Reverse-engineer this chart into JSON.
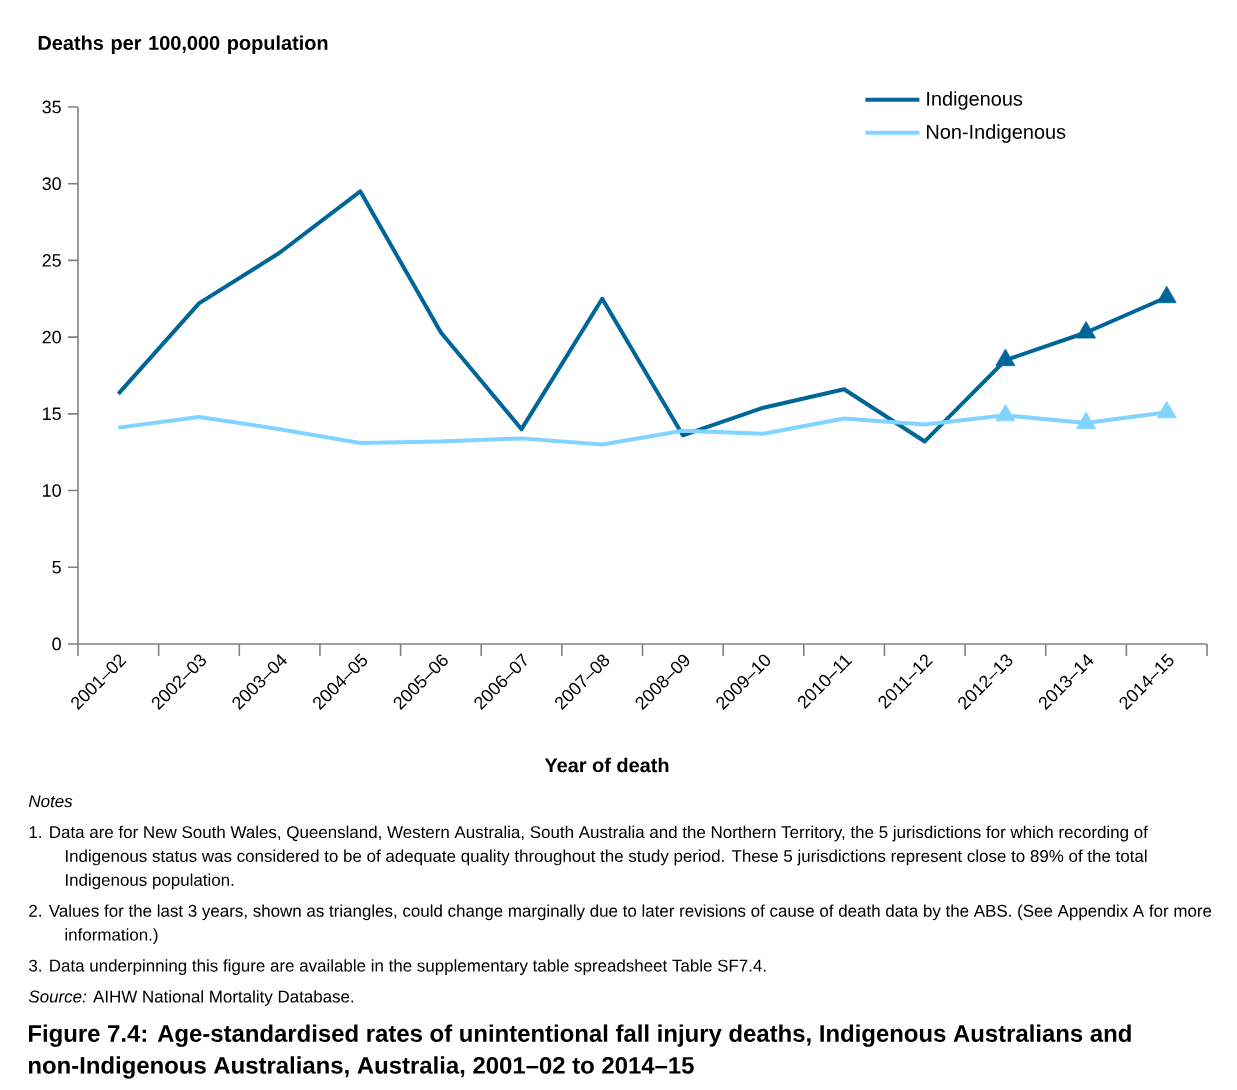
{
  "chart_data": {
    "type": "line",
    "xlabel": "Year of death",
    "ylabel": "Deaths per 100,000 population",
    "categories": [
      "2001–02",
      "2002–03",
      "2003–04",
      "2004–05",
      "2005–06",
      "2006–07",
      "2007–08",
      "2008–09",
      "2009–10",
      "2010–11",
      "2011–12",
      "2012–13",
      "2013–14",
      "2014–15"
    ],
    "series": [
      {
        "name": "Indigenous",
        "color": "#006699",
        "values": [
          16.3,
          22.2,
          25.5,
          29.5,
          20.3,
          14.0,
          22.5,
          13.6,
          15.4,
          16.6,
          13.2,
          18.5,
          20.3,
          22.6
        ]
      },
      {
        "name": "Non-Indigenous",
        "color": "#80d4ff",
        "values": [
          14.1,
          14.8,
          14.0,
          13.1,
          13.2,
          13.4,
          13.0,
          13.9,
          13.7,
          14.7,
          14.3,
          14.9,
          14.4,
          15.1
        ]
      },
      {
        "type": "scatter",
        "marker": "triangle",
        "color": "#006699",
        "values": [
          null,
          null,
          null,
          null,
          null,
          null,
          null,
          null,
          null,
          null,
          null,
          18.5,
          20.3,
          22.6
        ]
      },
      {
        "type": "scatter",
        "marker": "triangle",
        "color": "#80d4ff",
        "values": [
          null,
          null,
          null,
          null,
          null,
          null,
          null,
          null,
          null,
          null,
          null,
          14.9,
          14.4,
          15.1
        ]
      }
    ],
    "ylim": [
      0,
      35
    ],
    "yticks": [
      0,
      5,
      10,
      15,
      20,
      25,
      30,
      35
    ],
    "legend": "top right",
    "line_style": "solid",
    "annotations": [
      "*Notes*",
      "1. Data are for New South Wales, Queensland, Western Australia, South Australia and the Northern Territory, the 5 jurisdictions for which recording of Indigenous status was considered to be of adequate quality throughout the study period. These 5 jurisdictions represent close to 89% of the total Indigenous population.",
      "2. Values for the last 3 years, shown as triangles, could change marginally due to later revisions of cause of death data by the ABS. (See Appendix A for more information.)",
      "3. Data underpinning this figure are available in the supplementary table spreadsheet Table SF7.4.",
      "*Source:* AIHW National Mortality Database."
    ],
    "title": "Figure 7.4: Age-standardised rates of unintentional fall injury deaths, Indigenous Australians and non-Indigenous Australians, Australia, 2001–02 to 2014–15"
  }
}
